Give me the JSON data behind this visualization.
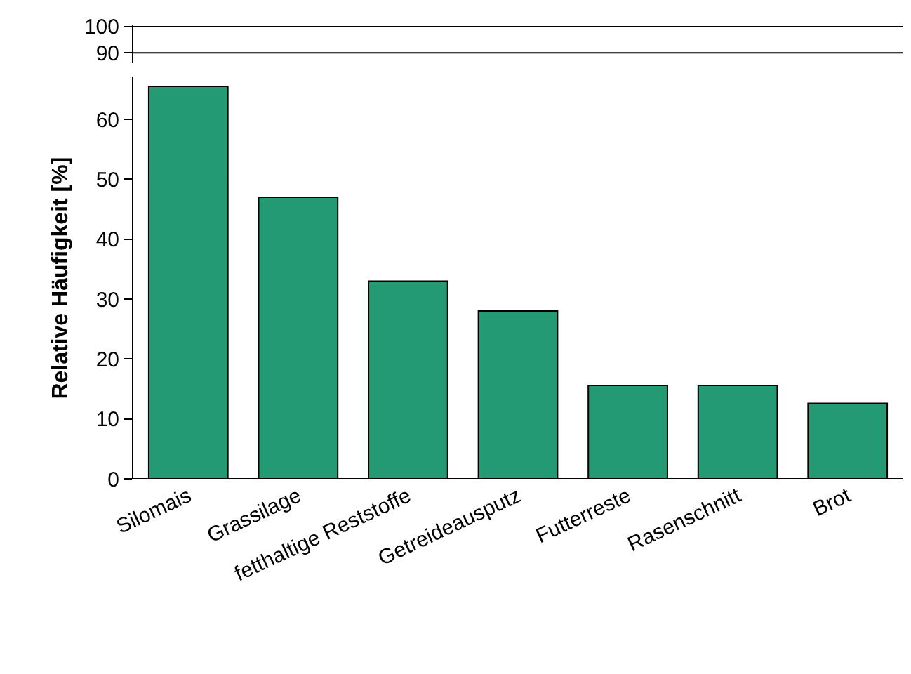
{
  "chart_data": [
    {
      "type": "other",
      "annotations": [
        "100",
        "90"
      ]
    },
    {
      "type": "bar",
      "categories": [
        "Silomais",
        "Grassilage",
        "fetthaltige Reststoffe",
        "Getreideausputz",
        "Futterreste",
        "Rasenschnitt",
        "Brot"
      ],
      "values": [
        65.5,
        47,
        33,
        28,
        15.6,
        15.6,
        12.6
      ],
      "color": "#239a74",
      "ylabel": "Relative Häufigkeit [%]",
      "ylim": [
        0,
        67
      ],
      "yticks": [
        0,
        10,
        20,
        30,
        40,
        50,
        60
      ]
    }
  ]
}
